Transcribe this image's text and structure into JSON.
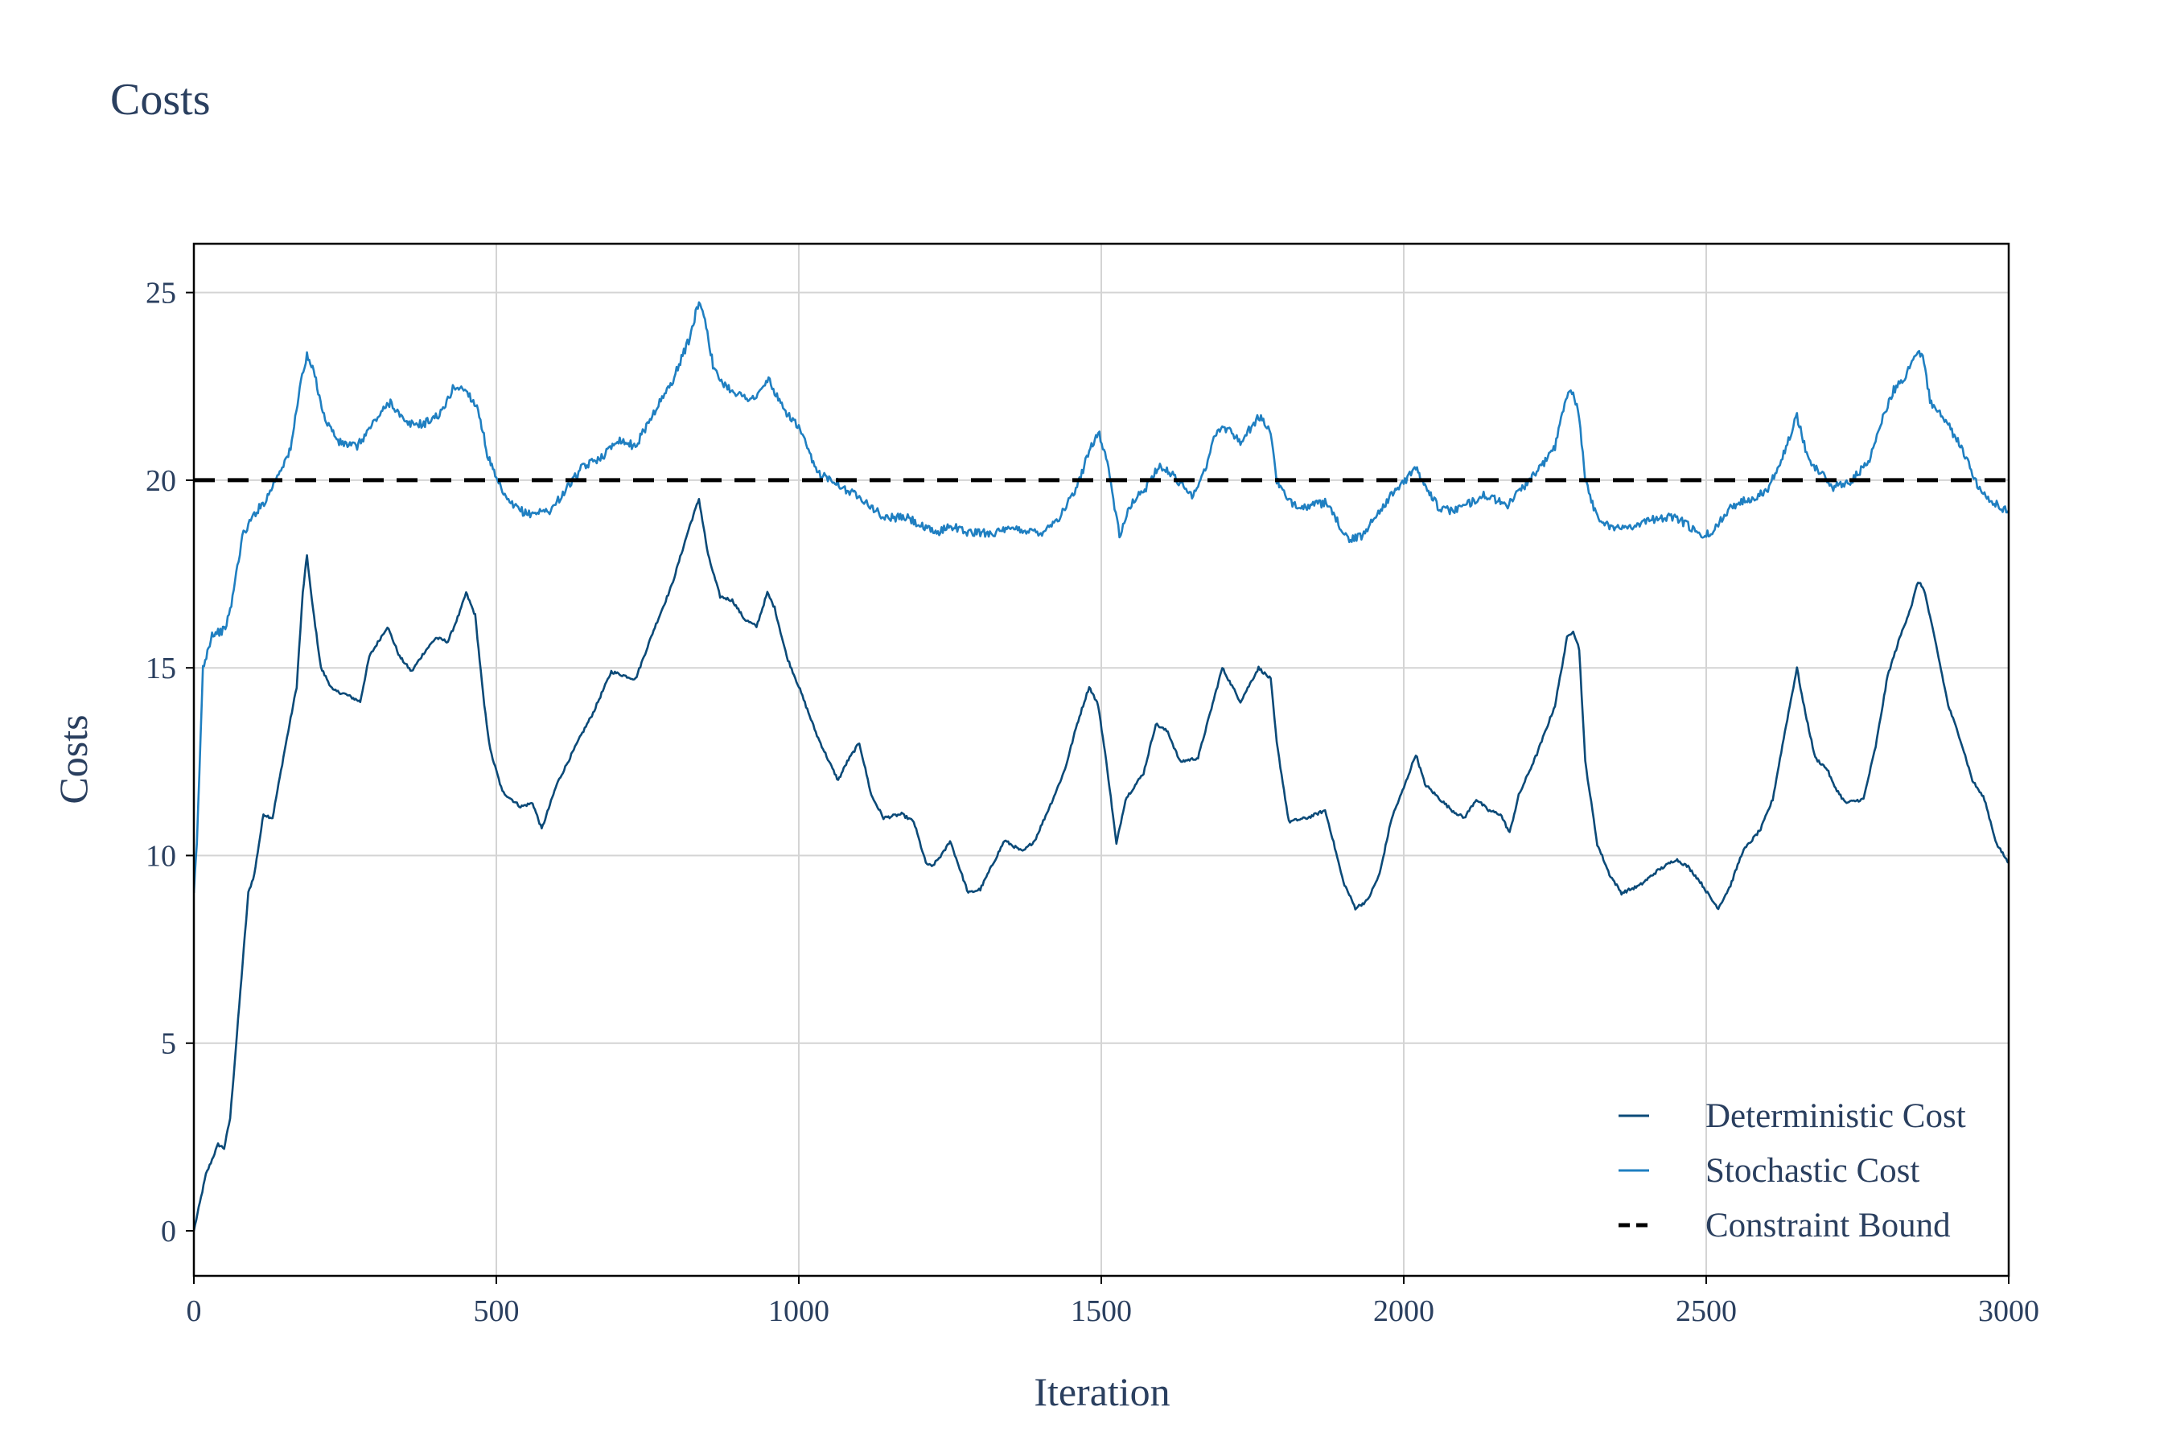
{
  "chart_data": {
    "type": "line",
    "title": "Costs",
    "xlabel": "Iteration",
    "ylabel": "Costs",
    "xlim": [
      0,
      3000
    ],
    "ylim": [
      -1.2,
      26.3
    ],
    "xticks": [
      0,
      500,
      1000,
      1500,
      2000,
      2500,
      3000
    ],
    "yticks": [
      0,
      5,
      10,
      15,
      20,
      25
    ],
    "grid": true,
    "legend_position": "bottom-right",
    "series": [
      {
        "name": "Deterministic Cost",
        "color": "#0b4a78",
        "style": "solid",
        "points": [
          [
            0,
            0
          ],
          [
            20,
            1.5
          ],
          [
            40,
            2.3
          ],
          [
            50,
            2.2
          ],
          [
            60,
            3
          ],
          [
            75,
            6
          ],
          [
            90,
            9
          ],
          [
            100,
            9.5
          ],
          [
            115,
            11.1
          ],
          [
            130,
            11
          ],
          [
            150,
            12.8
          ],
          [
            170,
            14.5
          ],
          [
            180,
            17
          ],
          [
            187,
            18
          ],
          [
            195,
            16.8
          ],
          [
            210,
            15
          ],
          [
            230,
            14.4
          ],
          [
            250,
            14.3
          ],
          [
            275,
            14.1
          ],
          [
            290,
            15.3
          ],
          [
            320,
            16.1
          ],
          [
            340,
            15.3
          ],
          [
            360,
            14.9
          ],
          [
            380,
            15.4
          ],
          [
            400,
            15.8
          ],
          [
            420,
            15.7
          ],
          [
            440,
            16.5
          ],
          [
            450,
            17
          ],
          [
            465,
            16.4
          ],
          [
            480,
            14
          ],
          [
            490,
            12.8
          ],
          [
            510,
            11.7
          ],
          [
            540,
            11.3
          ],
          [
            560,
            11.4
          ],
          [
            575,
            10.7
          ],
          [
            600,
            11.9
          ],
          [
            640,
            13.2
          ],
          [
            660,
            13.8
          ],
          [
            690,
            14.9
          ],
          [
            710,
            14.8
          ],
          [
            730,
            14.7
          ],
          [
            760,
            16
          ],
          [
            790,
            17.2
          ],
          [
            820,
            18.8
          ],
          [
            835,
            19.5
          ],
          [
            850,
            18
          ],
          [
            870,
            16.9
          ],
          [
            890,
            16.8
          ],
          [
            910,
            16.3
          ],
          [
            930,
            16.1
          ],
          [
            948,
            17
          ],
          [
            960,
            16.6
          ],
          [
            980,
            15.3
          ],
          [
            1000,
            14.5
          ],
          [
            1030,
            13.2
          ],
          [
            1050,
            12.5
          ],
          [
            1065,
            12
          ],
          [
            1080,
            12.5
          ],
          [
            1100,
            13
          ],
          [
            1120,
            11.6
          ],
          [
            1140,
            11
          ],
          [
            1170,
            11.1
          ],
          [
            1190,
            10.9
          ],
          [
            1210,
            9.8
          ],
          [
            1220,
            9.7
          ],
          [
            1240,
            10.1
          ],
          [
            1250,
            10.4
          ],
          [
            1280,
            9
          ],
          [
            1300,
            9.1
          ],
          [
            1340,
            10.4
          ],
          [
            1370,
            10.1
          ],
          [
            1390,
            10.4
          ],
          [
            1420,
            11.5
          ],
          [
            1440,
            12.3
          ],
          [
            1460,
            13.5
          ],
          [
            1480,
            14.5
          ],
          [
            1495,
            14
          ],
          [
            1510,
            12.3
          ],
          [
            1525,
            10.3
          ],
          [
            1540,
            11.5
          ],
          [
            1570,
            12.2
          ],
          [
            1590,
            13.5
          ],
          [
            1610,
            13.3
          ],
          [
            1630,
            12.5
          ],
          [
            1660,
            12.6
          ],
          [
            1690,
            14.4
          ],
          [
            1700,
            15
          ],
          [
            1730,
            14.1
          ],
          [
            1760,
            15
          ],
          [
            1780,
            14.7
          ],
          [
            1790,
            13
          ],
          [
            1810,
            10.9
          ],
          [
            1840,
            11
          ],
          [
            1870,
            11.2
          ],
          [
            1880,
            10.6
          ],
          [
            1900,
            9.3
          ],
          [
            1920,
            8.6
          ],
          [
            1940,
            8.8
          ],
          [
            1960,
            9.5
          ],
          [
            1980,
            11
          ],
          [
            2000,
            11.8
          ],
          [
            2020,
            12.7
          ],
          [
            2035,
            11.9
          ],
          [
            2060,
            11.5
          ],
          [
            2080,
            11.2
          ],
          [
            2100,
            11
          ],
          [
            2120,
            11.5
          ],
          [
            2140,
            11.2
          ],
          [
            2160,
            11.1
          ],
          [
            2175,
            10.6
          ],
          [
            2190,
            11.6
          ],
          [
            2220,
            12.7
          ],
          [
            2250,
            14
          ],
          [
            2270,
            15.8
          ],
          [
            2280,
            16
          ],
          [
            2290,
            15.5
          ],
          [
            2300,
            12.5
          ],
          [
            2320,
            10.3
          ],
          [
            2340,
            9.5
          ],
          [
            2360,
            9
          ],
          [
            2390,
            9.2
          ],
          [
            2420,
            9.6
          ],
          [
            2450,
            9.9
          ],
          [
            2470,
            9.7
          ],
          [
            2490,
            9.3
          ],
          [
            2510,
            8.8
          ],
          [
            2520,
            8.6
          ],
          [
            2540,
            9.2
          ],
          [
            2560,
            10.1
          ],
          [
            2590,
            10.7
          ],
          [
            2610,
            11.5
          ],
          [
            2630,
            13.3
          ],
          [
            2650,
            15
          ],
          [
            2660,
            14.1
          ],
          [
            2680,
            12.6
          ],
          [
            2700,
            12.3
          ],
          [
            2710,
            11.9
          ],
          [
            2730,
            11.4
          ],
          [
            2760,
            11.5
          ],
          [
            2780,
            12.9
          ],
          [
            2800,
            14.8
          ],
          [
            2820,
            15.8
          ],
          [
            2840,
            16.7
          ],
          [
            2850,
            17.3
          ],
          [
            2860,
            17.1
          ],
          [
            2880,
            15.6
          ],
          [
            2900,
            14
          ],
          [
            2920,
            13.1
          ],
          [
            2940,
            12
          ],
          [
            2960,
            11.5
          ],
          [
            2980,
            10.3
          ],
          [
            3000,
            9.8
          ]
        ]
      },
      {
        "name": "Stochastic Cost",
        "color": "#1f7fc1",
        "style": "solid",
        "points": [
          [
            0,
            9
          ],
          [
            5,
            10.3
          ],
          [
            15,
            15
          ],
          [
            30,
            15.9
          ],
          [
            50,
            16
          ],
          [
            60,
            16.5
          ],
          [
            80,
            18.5
          ],
          [
            100,
            19.1
          ],
          [
            120,
            19.5
          ],
          [
            140,
            20.2
          ],
          [
            160,
            20.8
          ],
          [
            175,
            22.5
          ],
          [
            187,
            23.3
          ],
          [
            200,
            22.8
          ],
          [
            215,
            21.7
          ],
          [
            240,
            21
          ],
          [
            270,
            20.9
          ],
          [
            300,
            21.6
          ],
          [
            325,
            22.1
          ],
          [
            350,
            21.5
          ],
          [
            380,
            21.5
          ],
          [
            410,
            21.8
          ],
          [
            430,
            22.5
          ],
          [
            450,
            22.4
          ],
          [
            470,
            21.9
          ],
          [
            485,
            20.7
          ],
          [
            500,
            20
          ],
          [
            520,
            19.4
          ],
          [
            550,
            19.1
          ],
          [
            590,
            19.2
          ],
          [
            640,
            20.3
          ],
          [
            680,
            20.7
          ],
          [
            700,
            21.1
          ],
          [
            730,
            20.9
          ],
          [
            760,
            21.8
          ],
          [
            790,
            22.6
          ],
          [
            820,
            23.8
          ],
          [
            835,
            24.8
          ],
          [
            845,
            24.3
          ],
          [
            860,
            22.9
          ],
          [
            880,
            22.5
          ],
          [
            910,
            22.2
          ],
          [
            930,
            22.2
          ],
          [
            950,
            22.7
          ],
          [
            970,
            22
          ],
          [
            1000,
            21.4
          ],
          [
            1030,
            20.2
          ],
          [
            1060,
            20
          ],
          [
            1080,
            19.7
          ],
          [
            1100,
            19.6
          ],
          [
            1140,
            19
          ],
          [
            1180,
            19
          ],
          [
            1210,
            18.7
          ],
          [
            1230,
            18.6
          ],
          [
            1250,
            18.8
          ],
          [
            1280,
            18.6
          ],
          [
            1320,
            18.6
          ],
          [
            1360,
            18.7
          ],
          [
            1400,
            18.6
          ],
          [
            1430,
            19
          ],
          [
            1460,
            19.8
          ],
          [
            1480,
            20.8
          ],
          [
            1495,
            21.3
          ],
          [
            1510,
            20.5
          ],
          [
            1530,
            18.5
          ],
          [
            1550,
            19.4
          ],
          [
            1570,
            19.7
          ],
          [
            1595,
            20.4
          ],
          [
            1620,
            20.1
          ],
          [
            1650,
            19.6
          ],
          [
            1670,
            20.2
          ],
          [
            1690,
            21.3
          ],
          [
            1710,
            21.4
          ],
          [
            1730,
            21
          ],
          [
            1760,
            21.7
          ],
          [
            1780,
            21.3
          ],
          [
            1790,
            20
          ],
          [
            1810,
            19.4
          ],
          [
            1840,
            19.3
          ],
          [
            1870,
            19.4
          ],
          [
            1890,
            18.9
          ],
          [
            1910,
            18.4
          ],
          [
            1930,
            18.5
          ],
          [
            1960,
            19.2
          ],
          [
            1990,
            19.8
          ],
          [
            2020,
            20.3
          ],
          [
            2035,
            19.9
          ],
          [
            2060,
            19.2
          ],
          [
            2080,
            19.2
          ],
          [
            2100,
            19.3
          ],
          [
            2130,
            19.6
          ],
          [
            2150,
            19.5
          ],
          [
            2170,
            19.3
          ],
          [
            2190,
            19.7
          ],
          [
            2220,
            20.2
          ],
          [
            2250,
            20.9
          ],
          [
            2270,
            22.3
          ],
          [
            2280,
            22.4
          ],
          [
            2290,
            21.7
          ],
          [
            2300,
            20
          ],
          [
            2320,
            19
          ],
          [
            2350,
            18.7
          ],
          [
            2380,
            18.8
          ],
          [
            2420,
            19
          ],
          [
            2450,
            19
          ],
          [
            2470,
            18.8
          ],
          [
            2490,
            18.5
          ],
          [
            2510,
            18.6
          ],
          [
            2540,
            19.3
          ],
          [
            2570,
            19.5
          ],
          [
            2600,
            19.7
          ],
          [
            2630,
            20.8
          ],
          [
            2650,
            21.7
          ],
          [
            2670,
            20.5
          ],
          [
            2690,
            20.2
          ],
          [
            2710,
            19.8
          ],
          [
            2740,
            20
          ],
          [
            2770,
            20.5
          ],
          [
            2790,
            21.6
          ],
          [
            2810,
            22.4
          ],
          [
            2830,
            22.8
          ],
          [
            2850,
            23.5
          ],
          [
            2860,
            23.2
          ],
          [
            2870,
            22.1
          ],
          [
            2890,
            21.7
          ],
          [
            2910,
            21.2
          ],
          [
            2930,
            20.6
          ],
          [
            2950,
            19.8
          ],
          [
            2970,
            19.5
          ],
          [
            2990,
            19.2
          ],
          [
            3000,
            19.2
          ]
        ]
      },
      {
        "name": "Constraint Bound",
        "color": "#000000",
        "style": "dash",
        "points": [
          [
            0,
            20
          ],
          [
            3000,
            20
          ]
        ]
      }
    ]
  }
}
